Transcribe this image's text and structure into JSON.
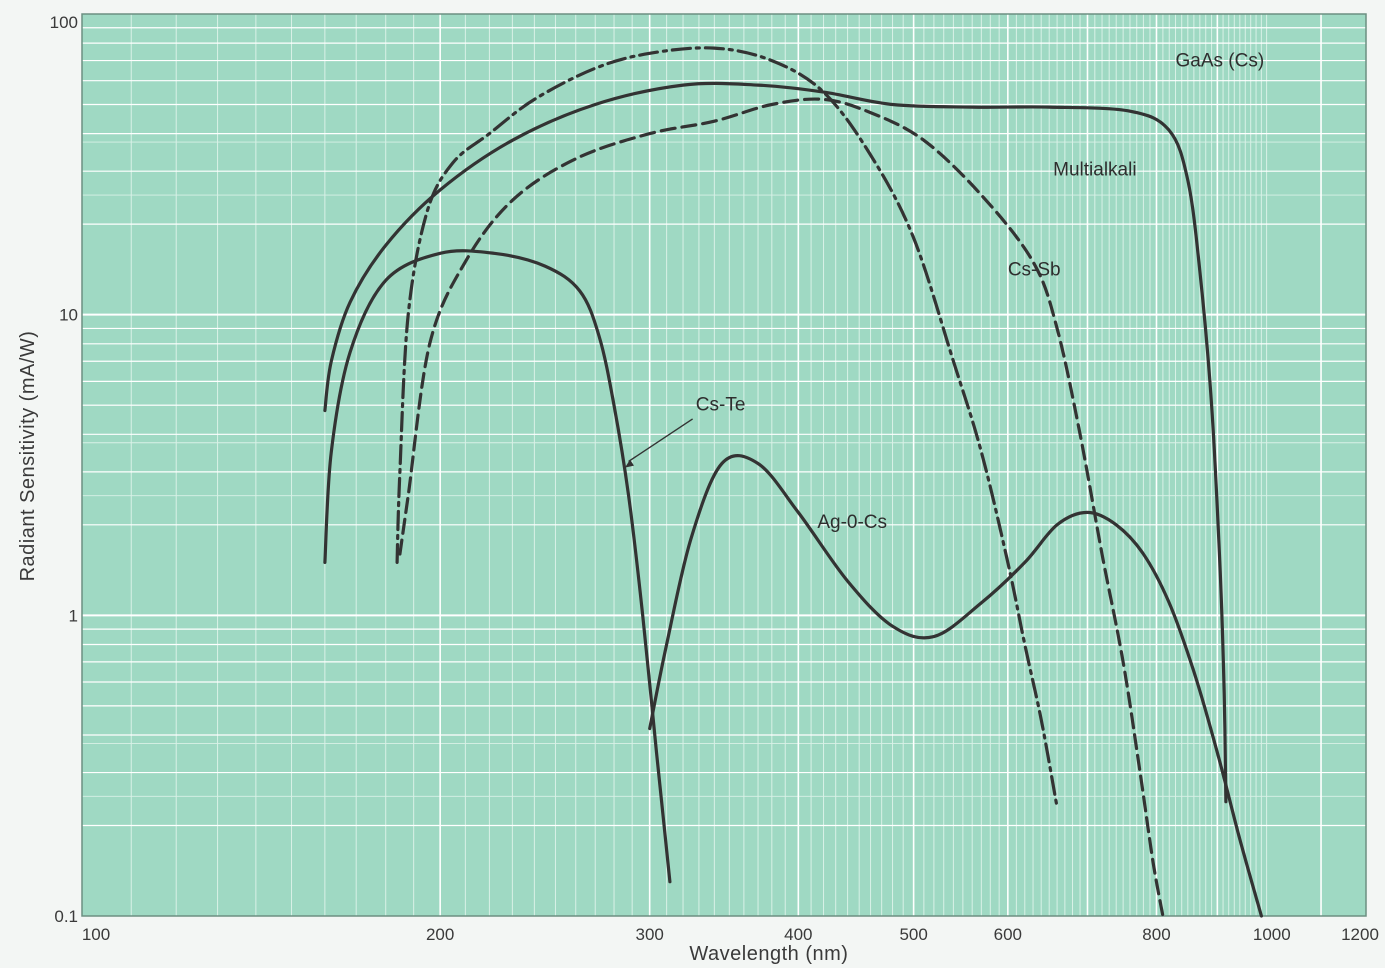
{
  "chart_data": {
    "type": "line",
    "xlabel": "Wavelength (nm)",
    "ylabel": "Radiant Sensitivity (mA/W)",
    "xscale": "log",
    "yscale": "log",
    "xlim": [
      100,
      1200
    ],
    "ylim": [
      0.1,
      100
    ],
    "x_ticks": [
      {
        "value": 100,
        "label": "100"
      },
      {
        "value": 200,
        "label": "200"
      },
      {
        "value": 300,
        "label": "300"
      },
      {
        "value": 400,
        "label": "400"
      },
      {
        "value": 500,
        "label": "500"
      },
      {
        "value": 600,
        "label": "600"
      },
      {
        "value": 800,
        "label": "800"
      },
      {
        "value": 1000,
        "label": "1000"
      },
      {
        "value": 1200,
        "label": "1200"
      }
    ],
    "y_ticks": [
      {
        "value": 100,
        "label": "100"
      },
      {
        "value": 10,
        "label": "10"
      },
      {
        "value": 1,
        "label": "1"
      },
      {
        "value": 0.1,
        "label": "0.1"
      }
    ],
    "grid": true,
    "colors": {
      "background": "#9fd9c3",
      "grid_major": "#ffffff",
      "grid_minor": "#d9f1e7",
      "curve": "#333333"
    },
    "series": [
      {
        "name": "GaAs (Cs)",
        "style": "solid",
        "x": [
          160,
          162,
          168,
          180,
          200,
          230,
          270,
          320,
          370,
          420,
          480,
          560,
          650,
          760,
          820,
          850,
          870,
          890,
          905,
          912,
          915
        ],
        "y": [
          4.8,
          7,
          11,
          17,
          26,
          38,
          50,
          58,
          58,
          55,
          50,
          49,
          49,
          47.5,
          41,
          28,
          14,
          5,
          1.4,
          0.55,
          0.24
        ]
      },
      {
        "name": "Multialkali",
        "style": "dashed",
        "x": [
          185,
          188,
          196,
          210,
          230,
          260,
          300,
          340,
          380,
          420,
          460,
          510,
          570,
          630,
          660,
          690,
          720,
          750,
          775,
          795,
          810
        ],
        "y": [
          1.6,
          2.5,
          8,
          15,
          24,
          33,
          40,
          44,
          50,
          52,
          47,
          38,
          25,
          15,
          9,
          4,
          1.6,
          0.7,
          0.3,
          0.15,
          0.1
        ]
      },
      {
        "name": "Cs-Sb",
        "style": "dash-dot",
        "x": [
          184,
          185,
          188,
          195,
          205,
          220,
          240,
          270,
          300,
          340,
          380,
          420,
          460,
          500,
          540,
          570,
          600,
          620,
          640,
          660
        ],
        "y": [
          1.5,
          3,
          10,
          22,
          32,
          40,
          52,
          66,
          74,
          77,
          70,
          55,
          34,
          18,
          7,
          3.5,
          1.5,
          0.8,
          0.45,
          0.23
        ]
      },
      {
        "name": "Cs-Te",
        "style": "solid",
        "x": [
          160,
          162,
          168,
          180,
          200,
          222,
          245,
          262,
          272,
          280,
          288,
          296,
          304,
          312
        ],
        "y": [
          1.5,
          3.5,
          7.5,
          13,
          16,
          16,
          14.5,
          12,
          8.5,
          5,
          2.5,
          1,
          0.35,
          0.13
        ]
      },
      {
        "name": "Ag-0-Cs",
        "style": "solid",
        "x": [
          300,
          310,
          325,
          345,
          370,
          400,
          440,
          480,
          520,
          570,
          620,
          660,
          700,
          740,
          780,
          820,
          860,
          900,
          940,
          980
        ],
        "y": [
          0.42,
          0.8,
          1.8,
          3.2,
          3.2,
          2.2,
          1.3,
          0.92,
          0.85,
          1.1,
          1.5,
          2,
          2.2,
          2,
          1.6,
          1.1,
          0.65,
          0.35,
          0.18,
          0.1
        ]
      }
    ],
    "annotations": [
      {
        "text": "GaAs (Cs)",
        "series": "GaAs (Cs)"
      },
      {
        "text": "Multialkali",
        "series": "Multialkali"
      },
      {
        "text": "Cs-Sb",
        "series": "Cs-Sb"
      },
      {
        "text": "Cs-Te",
        "series": "Cs-Te"
      },
      {
        "text": "Ag-0-Cs",
        "series": "Ag-0-Cs"
      }
    ]
  }
}
